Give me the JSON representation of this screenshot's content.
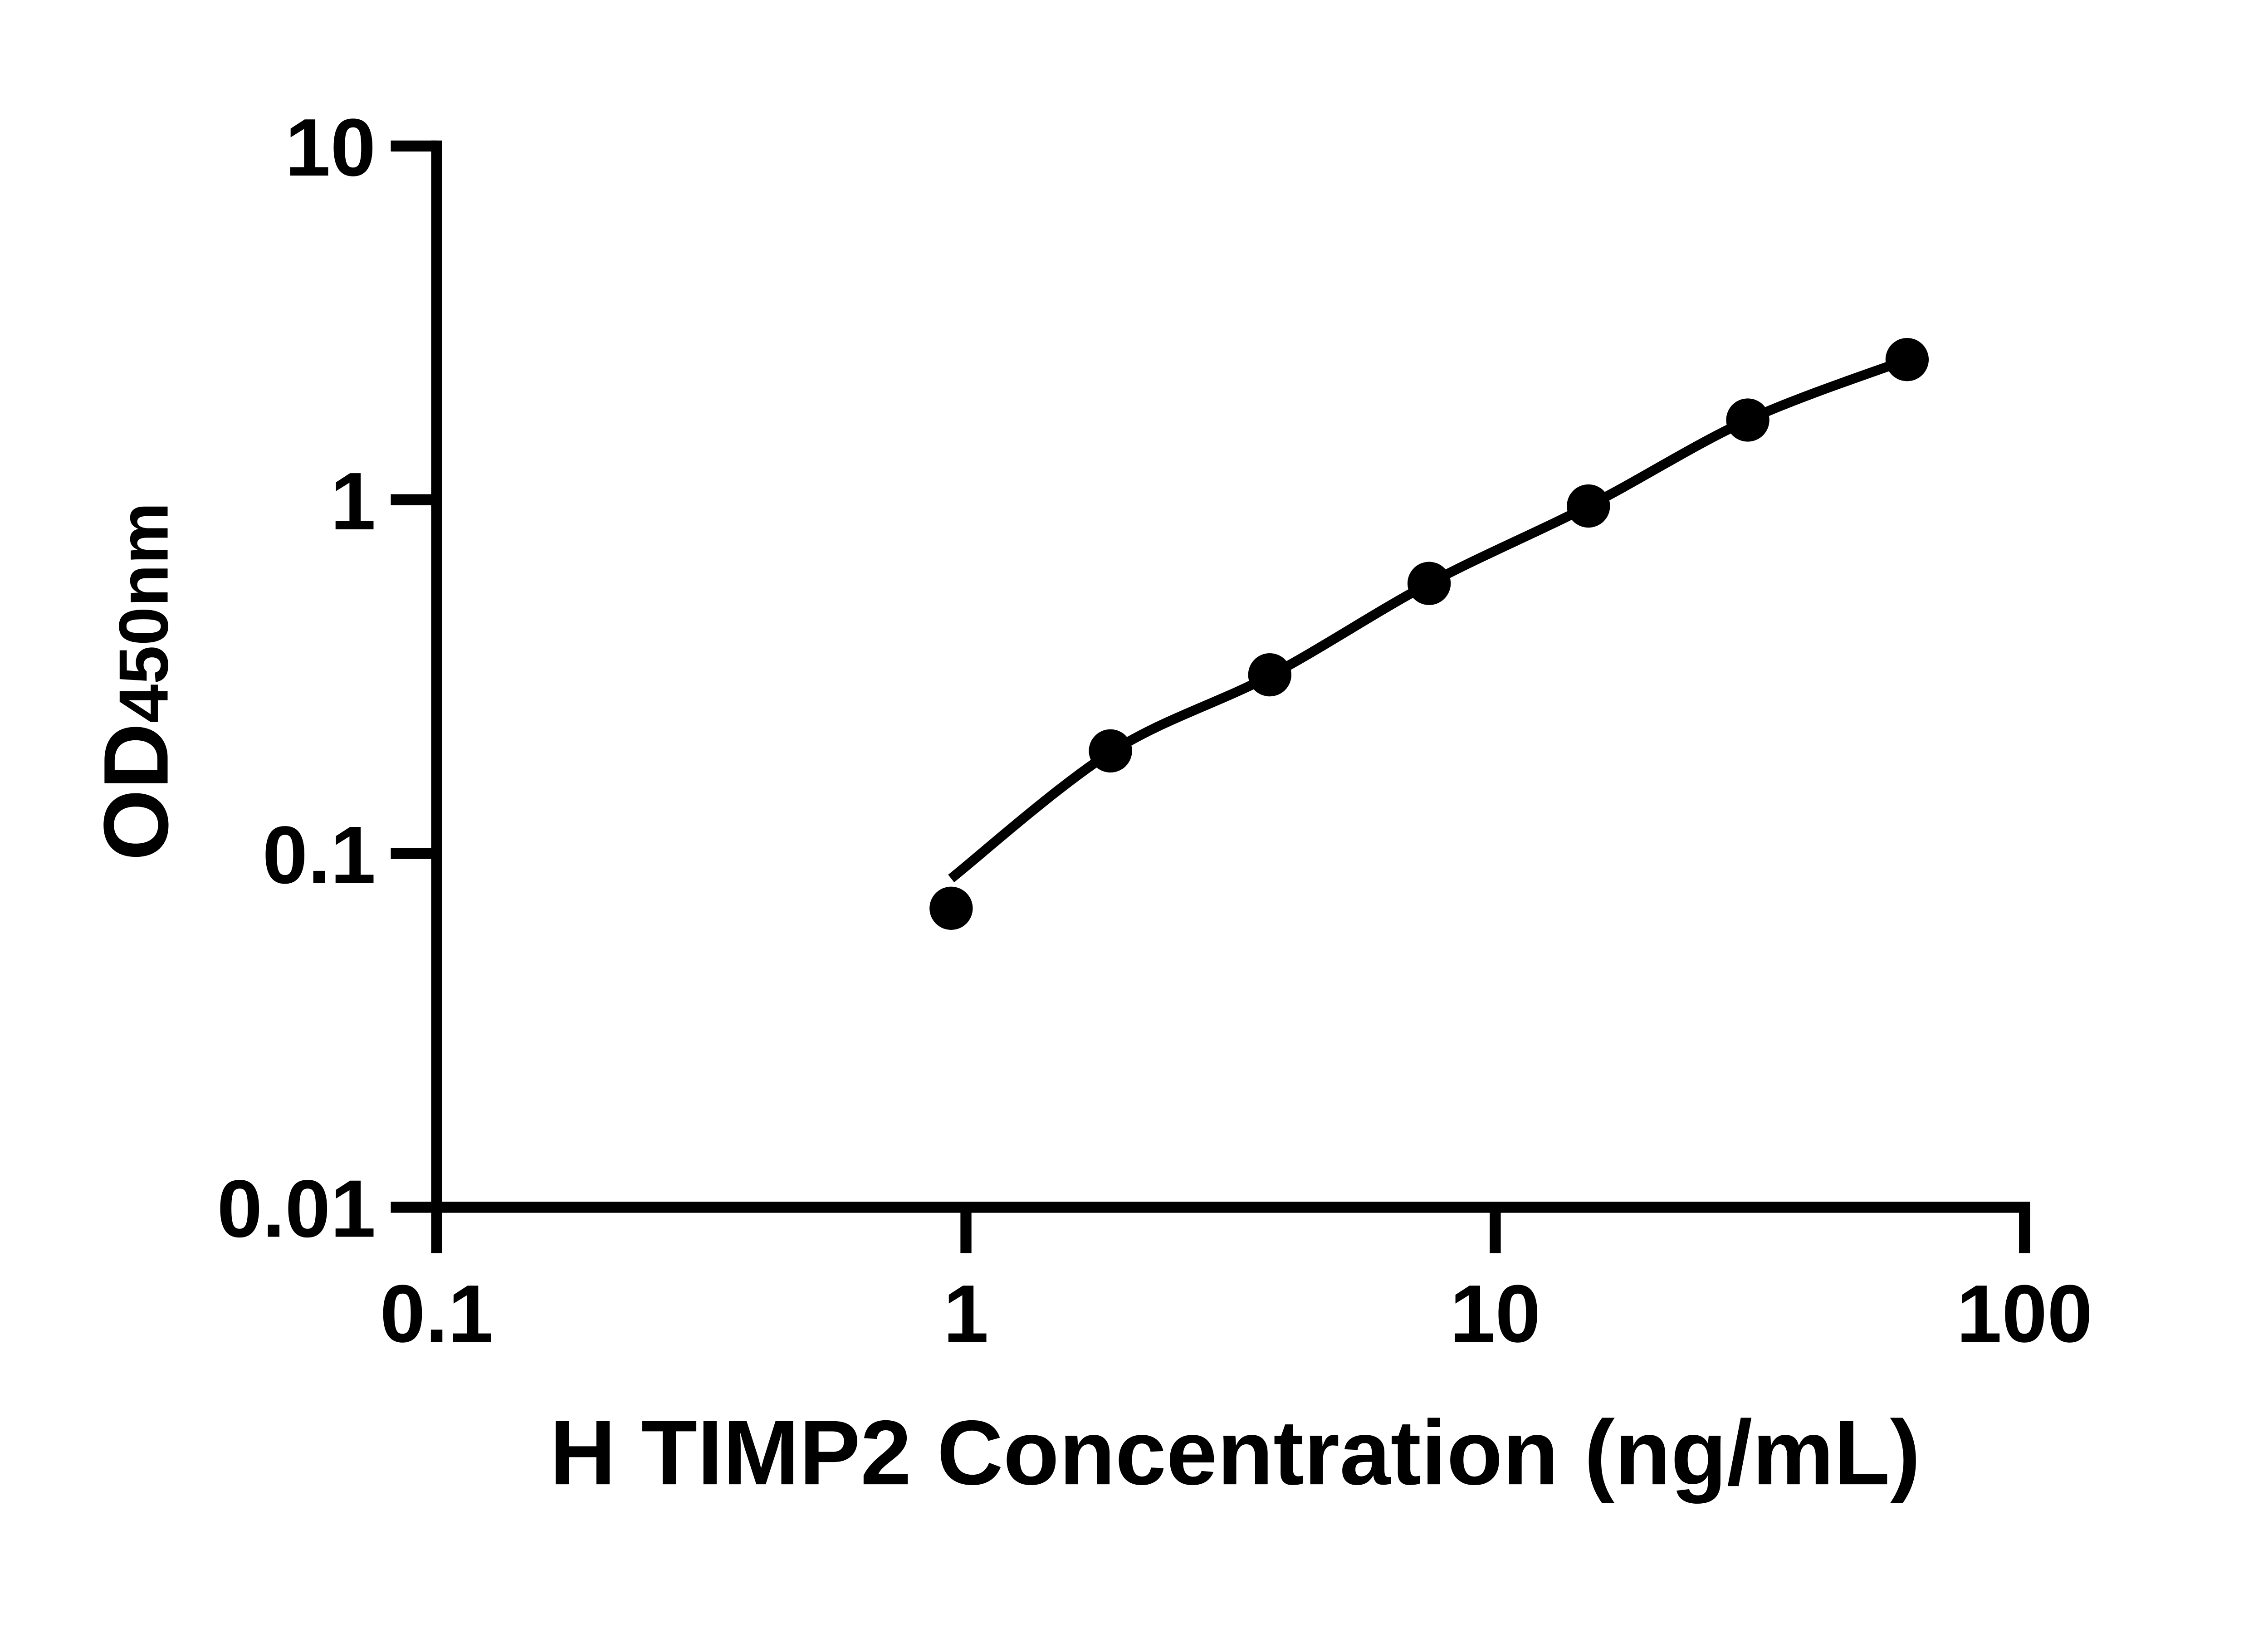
{
  "figure": {
    "background_color": "#ffffff",
    "ink_color": "#000000"
  },
  "chart_data": {
    "type": "scatter",
    "subtype": "elisa-standard-curve",
    "title": "",
    "xlabel": "H TIMP2 Concentration (ng/mL)",
    "ylabel": "OD",
    "ylabel_subscript": "450nm",
    "x_scale": "log10",
    "y_scale": "log10",
    "xlim": [
      0.1,
      100
    ],
    "ylim": [
      0.01,
      10
    ],
    "grid": false,
    "legend": "none",
    "x_ticks": [
      {
        "value": 0.1,
        "label": "0.1"
      },
      {
        "value": 1,
        "label": "1"
      },
      {
        "value": 10,
        "label": "10"
      },
      {
        "value": 100,
        "label": "100"
      }
    ],
    "y_ticks": [
      {
        "value": 10,
        "label": "10"
      },
      {
        "value": 1,
        "label": "1"
      },
      {
        "value": 0.1,
        "label": "0.1"
      },
      {
        "value": 0.01,
        "label": "0.01"
      }
    ],
    "series": [
      {
        "name": "standard-points",
        "marker": "filled-circle",
        "color": "#000000",
        "x": [
          0.9375,
          1.875,
          3.75,
          7.5,
          15,
          30,
          60
        ],
        "y": [
          0.07,
          0.195,
          0.32,
          0.58,
          0.96,
          1.68,
          2.49
        ]
      }
    ],
    "fit_curve": {
      "name": "fitted-standard-curve",
      "color": "#000000",
      "x": [
        0.9375,
        1.875,
        3.75,
        7.5,
        15,
        30,
        60
      ],
      "y": [
        0.085,
        0.193,
        0.318,
        0.58,
        0.96,
        1.68,
        2.49
      ]
    }
  }
}
